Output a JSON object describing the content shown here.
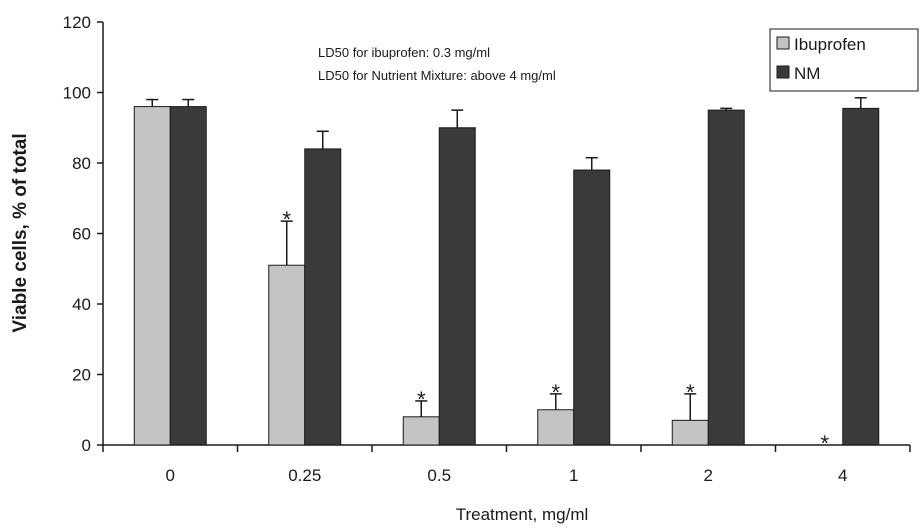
{
  "chart_data": {
    "type": "bar",
    "xlabel": "Treatment, mg/ml",
    "ylabel": "Viable cells, % of total",
    "ylim": [
      0,
      120
    ],
    "yticks": [
      0,
      20,
      40,
      60,
      80,
      100,
      120
    ],
    "categories": [
      "0",
      "0.25",
      "0.5",
      "1",
      "2",
      "4"
    ],
    "series": [
      {
        "name": "Ibuprofen",
        "color": "#c4c4c4",
        "values": [
          96,
          51,
          8,
          10,
          7,
          0
        ],
        "errors": [
          2,
          12.5,
          4.5,
          4.5,
          7.5,
          0
        ],
        "significance": [
          "",
          "*",
          "*",
          "*",
          "*",
          "*"
        ]
      },
      {
        "name": "NM",
        "color": "#3a3a3a",
        "values": [
          96,
          84,
          90,
          78,
          95,
          95.5
        ],
        "errors": [
          2,
          5,
          5,
          3.5,
          0.5,
          3
        ]
      }
    ],
    "annotations": [
      "LD50 for ibuprofen: 0.3 mg/ml",
      "LD50 for Nutrient Mixture: above 4 mg/ml"
    ],
    "legend": "top-right",
    "grid": false
  }
}
